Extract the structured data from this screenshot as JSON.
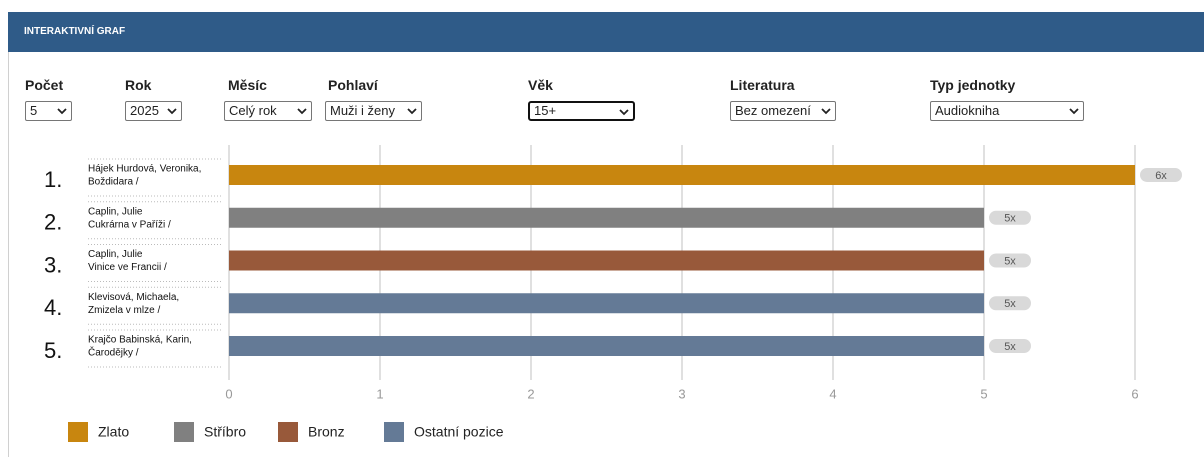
{
  "header": {
    "title": "INTERAKTIVNÍ GRAF"
  },
  "filters": [
    {
      "label": "Počet",
      "value": "5"
    },
    {
      "label": "Rok",
      "value": "2025"
    },
    {
      "label": "Měsíc",
      "value": "Celý rok"
    },
    {
      "label": "Pohlaví",
      "value": "Muži i ženy"
    },
    {
      "label": "Věk",
      "value": "15+"
    },
    {
      "label": "Literatura",
      "value": "Bez omezení"
    },
    {
      "label": "Typ jednotky",
      "value": "Audiokniha"
    }
  ],
  "chart_data": {
    "type": "bar",
    "orientation": "horizontal",
    "ranks": [
      "1.",
      "2.",
      "3.",
      "4.",
      "5."
    ],
    "categories": [
      [
        "Hájek Hurdová, Veronika,",
        "Boždidara /"
      ],
      [
        "Caplin, Julie",
        "Cukrárna v Paříži /"
      ],
      [
        "Caplin, Julie",
        "Vinice ve Francii /"
      ],
      [
        "Klevisová, Michaela,",
        "Zmizela v mlze /"
      ],
      [
        "Krajčo Babinská, Karin,",
        "Čarodějky /"
      ]
    ],
    "values": [
      6,
      5,
      5,
      5,
      5
    ],
    "value_labels": [
      "6x",
      "5x",
      "5x",
      "5x",
      "5x"
    ],
    "colors": [
      "#c8860f",
      "#808080",
      "#98593a",
      "#647a96",
      "#647a96"
    ],
    "xlim": [
      0,
      6
    ],
    "xticks": [
      0,
      1,
      2,
      3,
      4,
      5,
      6
    ],
    "grid": true,
    "legend": [
      {
        "name": "Zlato",
        "color": "#c8860f"
      },
      {
        "name": "Stříbro",
        "color": "#808080"
      },
      {
        "name": "Bronz",
        "color": "#98593a"
      },
      {
        "name": "Ostatní pozice",
        "color": "#647a96"
      }
    ]
  }
}
